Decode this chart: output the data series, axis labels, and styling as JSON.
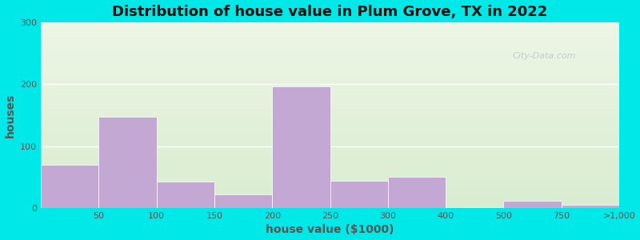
{
  "title": "Distribution of house value in Plum Grove, TX in 2022",
  "xlabel": "house value ($1000)",
  "ylabel": "houses",
  "bar_color": "#c4a8d4",
  "background_outer": "#00e8e8",
  "ylim": [
    0,
    300
  ],
  "yticks": [
    0,
    100,
    200,
    300
  ],
  "values": [
    70,
    148,
    43,
    22,
    197,
    44,
    50,
    12,
    5
  ],
  "bar_lefts": [
    0,
    1,
    2,
    3,
    4,
    5,
    6,
    8,
    9
  ],
  "bar_rights": [
    1,
    2,
    3,
    4,
    5,
    6,
    7,
    9,
    10
  ],
  "xtick_positions": [
    0,
    1,
    2,
    3,
    4,
    5,
    6,
    7,
    8,
    9,
    10
  ],
  "xtick_labels": [
    "",
    "50",
    "100",
    "150",
    "200",
    "250",
    "300",
    "400",
    "500",
    "750",
    ">1,000"
  ],
  "watermark": "City-Data.com",
  "title_fontsize": 13,
  "axis_label_fontsize": 10,
  "tick_fontsize": 8,
  "grid_color": "#d0d8c8",
  "bg_top": "#edf5e5",
  "bg_bottom": "#d8ecd0"
}
